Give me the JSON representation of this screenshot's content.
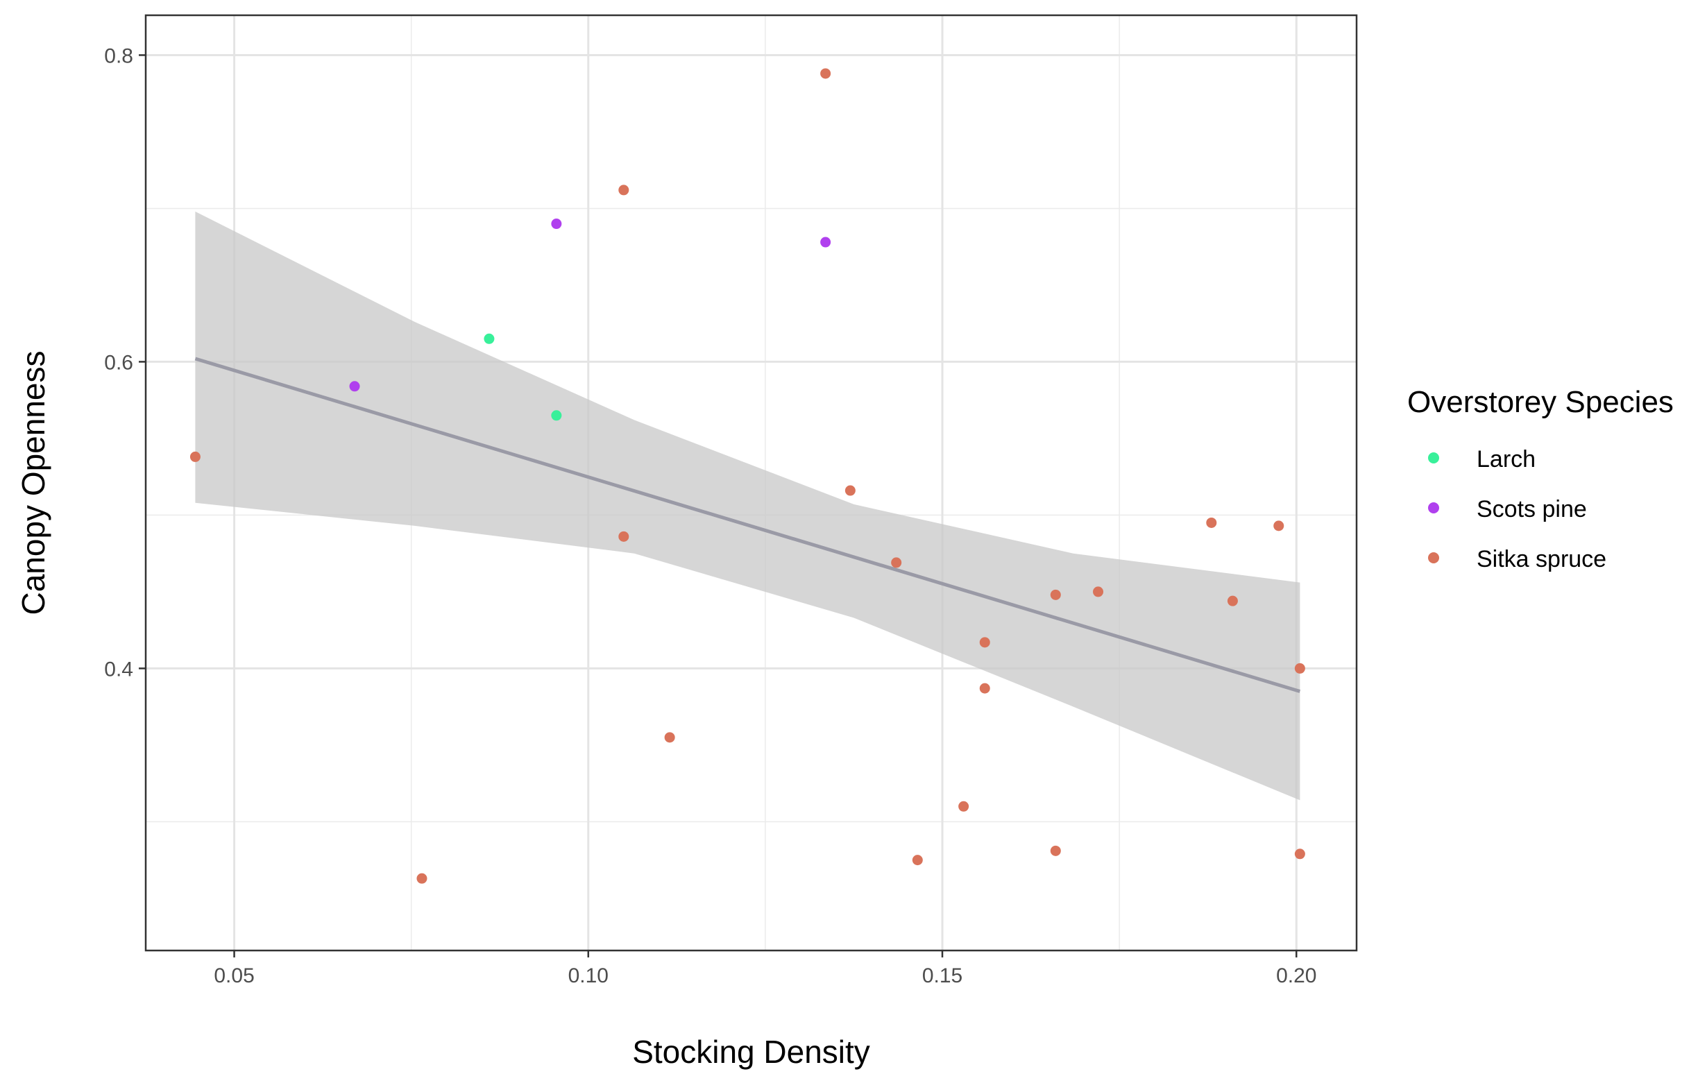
{
  "chart_data": {
    "type": "scatter",
    "title": "",
    "xlabel": "Stocking Density",
    "ylabel": "Canopy Openness",
    "xlim": [
      0.0375,
      0.2085
    ],
    "ylim": [
      0.216,
      0.826
    ],
    "x_ticks": [
      0.05,
      0.1,
      0.15,
      0.2
    ],
    "x_tick_labels": [
      "0.05",
      "0.10",
      "0.15",
      "0.20"
    ],
    "x_minor": [
      0.075,
      0.125,
      0.175
    ],
    "y_ticks": [
      0.4,
      0.6,
      0.8
    ],
    "y_tick_labels": [
      "0.4",
      "0.6",
      "0.8"
    ],
    "y_minor": [
      0.3,
      0.5,
      0.7
    ],
    "grid": true,
    "legend": {
      "title": "Overstorey Species",
      "placement": "right"
    },
    "series": [
      {
        "name": "Larch",
        "color": "#38f09a",
        "points": [
          [
            0.086,
            0.615
          ],
          [
            0.0955,
            0.565
          ]
        ]
      },
      {
        "name": "Scots pine",
        "color": "#b040ee",
        "points": [
          [
            0.067,
            0.584
          ],
          [
            0.0955,
            0.69
          ],
          [
            0.1335,
            0.678
          ]
        ]
      },
      {
        "name": "Sitka spruce",
        "color": "#d9735a",
        "points": [
          [
            0.0445,
            0.538
          ],
          [
            0.0765,
            0.263
          ],
          [
            0.105,
            0.712
          ],
          [
            0.105,
            0.486
          ],
          [
            0.1115,
            0.355
          ],
          [
            0.1335,
            0.788
          ],
          [
            0.137,
            0.516
          ],
          [
            0.1435,
            0.469
          ],
          [
            0.1465,
            0.275
          ],
          [
            0.153,
            0.31
          ],
          [
            0.156,
            0.417
          ],
          [
            0.156,
            0.387
          ],
          [
            0.166,
            0.448
          ],
          [
            0.166,
            0.281
          ],
          [
            0.172,
            0.45
          ],
          [
            0.188,
            0.495
          ],
          [
            0.191,
            0.444
          ],
          [
            0.1975,
            0.493
          ],
          [
            0.2005,
            0.4
          ],
          [
            0.2005,
            0.279
          ]
        ]
      }
    ],
    "trend": {
      "method": "linear fit",
      "color": "#9a9aa6",
      "band_color": "#c8c8c8",
      "line": [
        [
          0.0445,
          0.602
        ],
        [
          0.2005,
          0.385
        ]
      ],
      "band_x": [
        0.0445,
        0.0755,
        0.1065,
        0.1375,
        0.1685,
        0.2005
      ],
      "band_upper": [
        0.698,
        0.626,
        0.562,
        0.507,
        0.475,
        0.456
      ],
      "band_lower": [
        0.508,
        0.493,
        0.475,
        0.433,
        0.375,
        0.314
      ]
    }
  }
}
